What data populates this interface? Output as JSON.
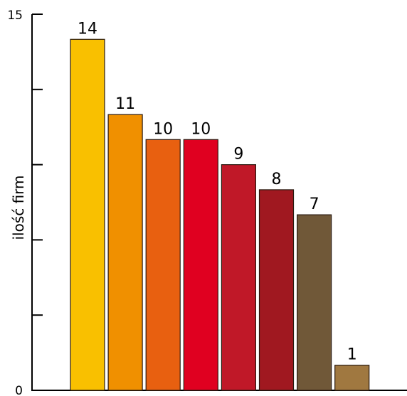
{
  "chart_data": {
    "type": "bar",
    "title": "",
    "xlabel": "",
    "ylabel": "ilość firm",
    "categories": [
      "",
      "",
      "",
      "",
      "",
      "",
      "",
      ""
    ],
    "values": [
      14,
      11,
      10,
      10,
      9,
      8,
      7,
      1
    ],
    "colors": [
      "#F9C000",
      "#F09000",
      "#E86010",
      "#E00020",
      "#C01828",
      "#A01820",
      "#705838",
      "#A07840"
    ],
    "ylim": [
      0,
      15
    ],
    "y_tick_labels": [
      "0",
      "15"
    ],
    "y_minor_ticks": [
      0,
      3,
      6,
      9,
      12,
      15
    ],
    "grid": false,
    "legend": "none"
  }
}
